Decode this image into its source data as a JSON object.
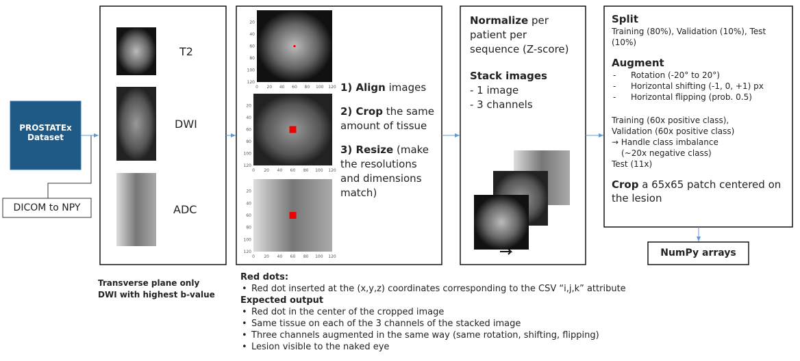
{
  "input": {
    "dataset": "PROSTATEx Dataset",
    "conversion": "DICOM to NPY"
  },
  "sequences": {
    "items": [
      "T2",
      "DWI",
      "ADC"
    ],
    "notes": [
      "Transverse plane only",
      "DWI with highest b-value"
    ]
  },
  "registration": {
    "axis_ticks": [
      0,
      20,
      40,
      60,
      80,
      100,
      120
    ],
    "steps": [
      {
        "bold": "1) Align",
        "text": " images"
      },
      {
        "bold": "2) Crop",
        "text": " the same amount of tissue"
      },
      {
        "bold": "3) Resize",
        "text": " (make the resolutions and dimensions match)"
      }
    ]
  },
  "normalization": {
    "normalize": {
      "bold": "Normalize",
      "text": " per patient per sequence (Z-score)"
    },
    "stack_title": "Stack images",
    "stack_items": [
      "- 1 image",
      "- 3 channels"
    ]
  },
  "dataset_prep": {
    "split_title": "Split",
    "split_text": "Training (80%), Validation (10%), Test (10%)",
    "augment_title": "Augment",
    "augment_items": [
      "Rotation (-20° to 20°)",
      "Horizontal shifting (-1, 0, +1) px",
      "Horizontal flipping (prob. 0.5)"
    ],
    "balance_lines": [
      "Training (60x positive class),",
      "Validation (60x positive class)",
      "→ Handle class imbalance",
      "(~20x negative class)",
      "Test (11x)"
    ],
    "crop": {
      "bold": "Crop",
      "text": " a 65x65 patch centered on the lesion"
    }
  },
  "output": "NumPy arrays",
  "notes": {
    "red_dots_title": "Red dots:",
    "red_dots_items": [
      "Red dot inserted at the (x,y,z) coordinates corresponding to the CSV “i,j,k” attribute"
    ],
    "expected_title": "Expected output",
    "expected_items": [
      "Red dot in the center of the cropped image",
      "Same tissue on each of the 3 channels of the stacked image",
      "Three channels augmented in the same way (same rotation, shifting, flipping)",
      "Lesion visible to the naked eye"
    ]
  }
}
